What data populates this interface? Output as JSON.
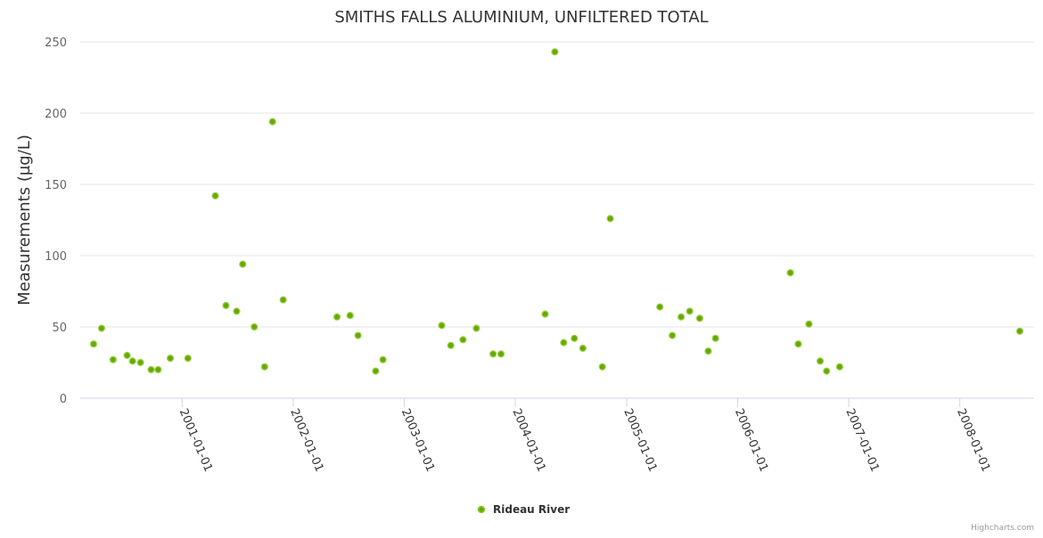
{
  "chart_data": {
    "type": "scatter",
    "title": "SMITHS FALLS ALUMINIUM, UNFILTERED TOTAL",
    "xlabel": "",
    "ylabel": "Measurements (µg/L)",
    "ylim": [
      0,
      250
    ],
    "yticks": [
      0,
      50,
      100,
      150,
      200,
      250
    ],
    "xlim": [
      "2000-02-01",
      "2008-09-01"
    ],
    "xticks": [
      "2001-01-01",
      "2002-01-01",
      "2003-01-01",
      "2004-01-01",
      "2005-01-01",
      "2006-01-01",
      "2007-01-01",
      "2008-01-01"
    ],
    "grid": true,
    "legend_position": "bottom-center",
    "credits": "Highcharts.com",
    "series": [
      {
        "name": "Rideau River",
        "color": "#66aa00",
        "points": [
          [
            "2000-03-16",
            38
          ],
          [
            "2000-04-11",
            49
          ],
          [
            "2000-05-19",
            27
          ],
          [
            "2000-07-04",
            30
          ],
          [
            "2000-07-22",
            26
          ],
          [
            "2000-08-17",
            25
          ],
          [
            "2000-09-21",
            20
          ],
          [
            "2000-10-14",
            20
          ],
          [
            "2000-11-23",
            28
          ],
          [
            "2001-01-20",
            28
          ],
          [
            "2001-04-20",
            142
          ],
          [
            "2001-05-25",
            65
          ],
          [
            "2001-06-29",
            61
          ],
          [
            "2001-07-19",
            94
          ],
          [
            "2001-08-26",
            50
          ],
          [
            "2001-09-29",
            22
          ],
          [
            "2001-10-25",
            194
          ],
          [
            "2001-11-29",
            69
          ],
          [
            "2002-05-25",
            57
          ],
          [
            "2002-07-07",
            58
          ],
          [
            "2002-08-02",
            44
          ],
          [
            "2002-09-29",
            19
          ],
          [
            "2002-10-23",
            27
          ],
          [
            "2003-05-04",
            51
          ],
          [
            "2003-06-03",
            37
          ],
          [
            "2003-07-13",
            41
          ],
          [
            "2003-08-26",
            49
          ],
          [
            "2003-10-20",
            31
          ],
          [
            "2003-11-15",
            31
          ],
          [
            "2004-04-08",
            59
          ],
          [
            "2004-05-10",
            243
          ],
          [
            "2004-06-08",
            39
          ],
          [
            "2004-07-13",
            42
          ],
          [
            "2004-08-10",
            35
          ],
          [
            "2004-10-13",
            22
          ],
          [
            "2004-11-08",
            126
          ],
          [
            "2005-04-20",
            64
          ],
          [
            "2005-05-31",
            44
          ],
          [
            "2005-06-29",
            57
          ],
          [
            "2005-07-27",
            61
          ],
          [
            "2005-08-29",
            56
          ],
          [
            "2005-09-26",
            33
          ],
          [
            "2005-10-20",
            42
          ],
          [
            "2006-06-23",
            88
          ],
          [
            "2006-07-19",
            38
          ],
          [
            "2006-08-23",
            52
          ],
          [
            "2006-09-29",
            26
          ],
          [
            "2006-10-20",
            19
          ],
          [
            "2006-12-02",
            22
          ],
          [
            "2008-07-16",
            47
          ]
        ]
      }
    ]
  }
}
